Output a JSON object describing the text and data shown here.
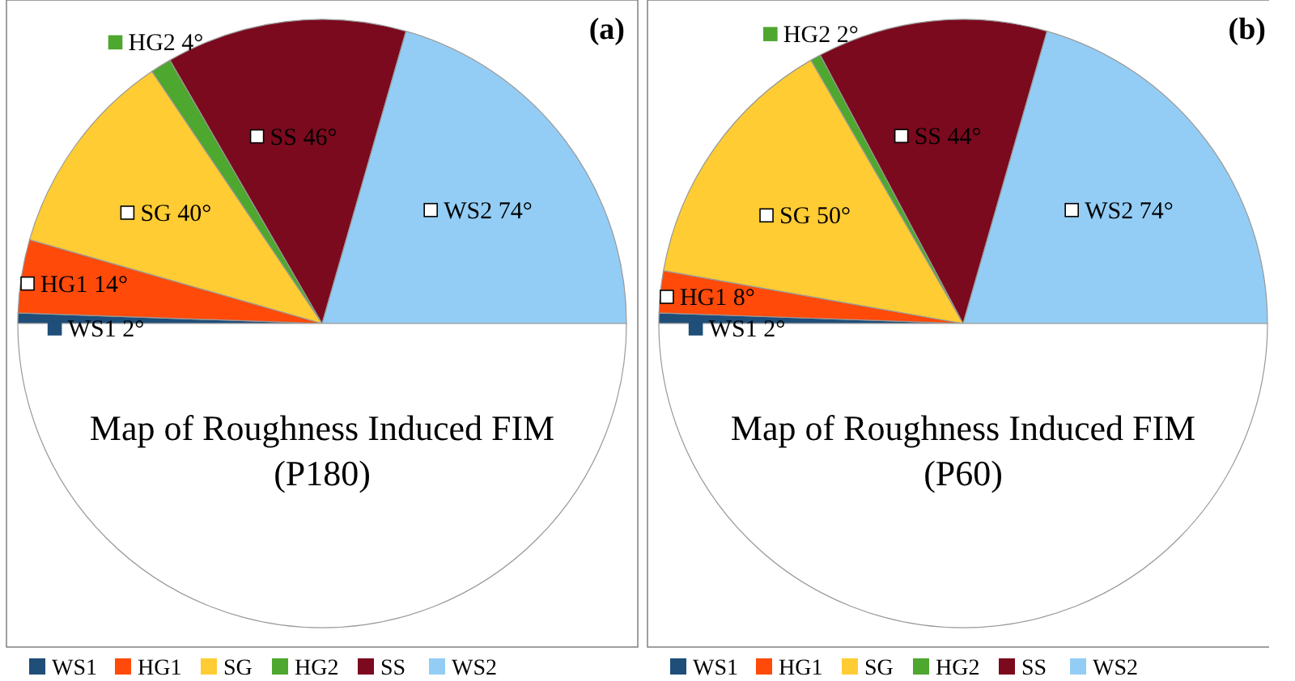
{
  "chart_data": [
    {
      "type": "pie",
      "title": "(a)",
      "categories": [
        "WS1",
        "HG1",
        "SG",
        "HG2",
        "SS",
        "WS2",
        null
      ],
      "values": [
        2,
        14,
        40,
        4,
        46,
        74,
        180
      ],
      "colors": [
        "#1f4e79",
        "#ff4a0a",
        "#ffcc33",
        "#4ea72e",
        "#7b0a1e",
        "#93cdf5",
        "#ffffff"
      ],
      "value_labels": [
        "WS1 2°",
        "HG1 14°",
        "SG 40°",
        "HG2 4°",
        "SS 46°",
        "WS2 74°",
        null
      ],
      "annotations": [
        "Map of Roughness  Induced FIM",
        "(P180)"
      ],
      "legend": "bottom"
    },
    {
      "type": "pie",
      "title": "(b)",
      "categories": [
        "WS1",
        "HG1",
        "SG",
        "HG2",
        "SS",
        "WS2",
        null
      ],
      "values": [
        2,
        8,
        50,
        2,
        44,
        74,
        180
      ],
      "colors": [
        "#1f4e79",
        "#ff4a0a",
        "#ffcc33",
        "#4ea72e",
        "#7b0a1e",
        "#93cdf5",
        "#ffffff"
      ],
      "value_labels": [
        "WS1 2°",
        "HG1 8°",
        "SG 50°",
        "HG2 2°",
        "SS 44°",
        "WS2 74°",
        null
      ],
      "annotations": [
        "Map of Roughness  Induced FIM",
        "(P60)"
      ],
      "legend": "bottom"
    }
  ]
}
